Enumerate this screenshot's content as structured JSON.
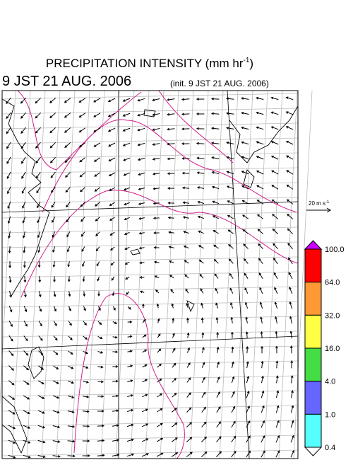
{
  "header": {
    "title": "PRECIPITATION INTENSITY (mm hr",
    "title_exponent": "-1",
    "title_close": ")",
    "valid_time": "9 JST 21 AUG. 2006",
    "init_time": "(init. 9 JST 21 AUG. 2006)"
  },
  "wind_scale": {
    "label": "20 m s",
    "exponent": "-1"
  },
  "legend": {
    "labels": [
      "100.0",
      "64.0",
      "32.0",
      "16.0",
      "4.0",
      "1.0",
      "0.4"
    ],
    "colors": [
      "#cc00ff",
      "#ff0000",
      "#ff9933",
      "#ffff44",
      "#44dd44",
      "#6666ff",
      "#55ffff",
      "#ffffff"
    ]
  }
}
